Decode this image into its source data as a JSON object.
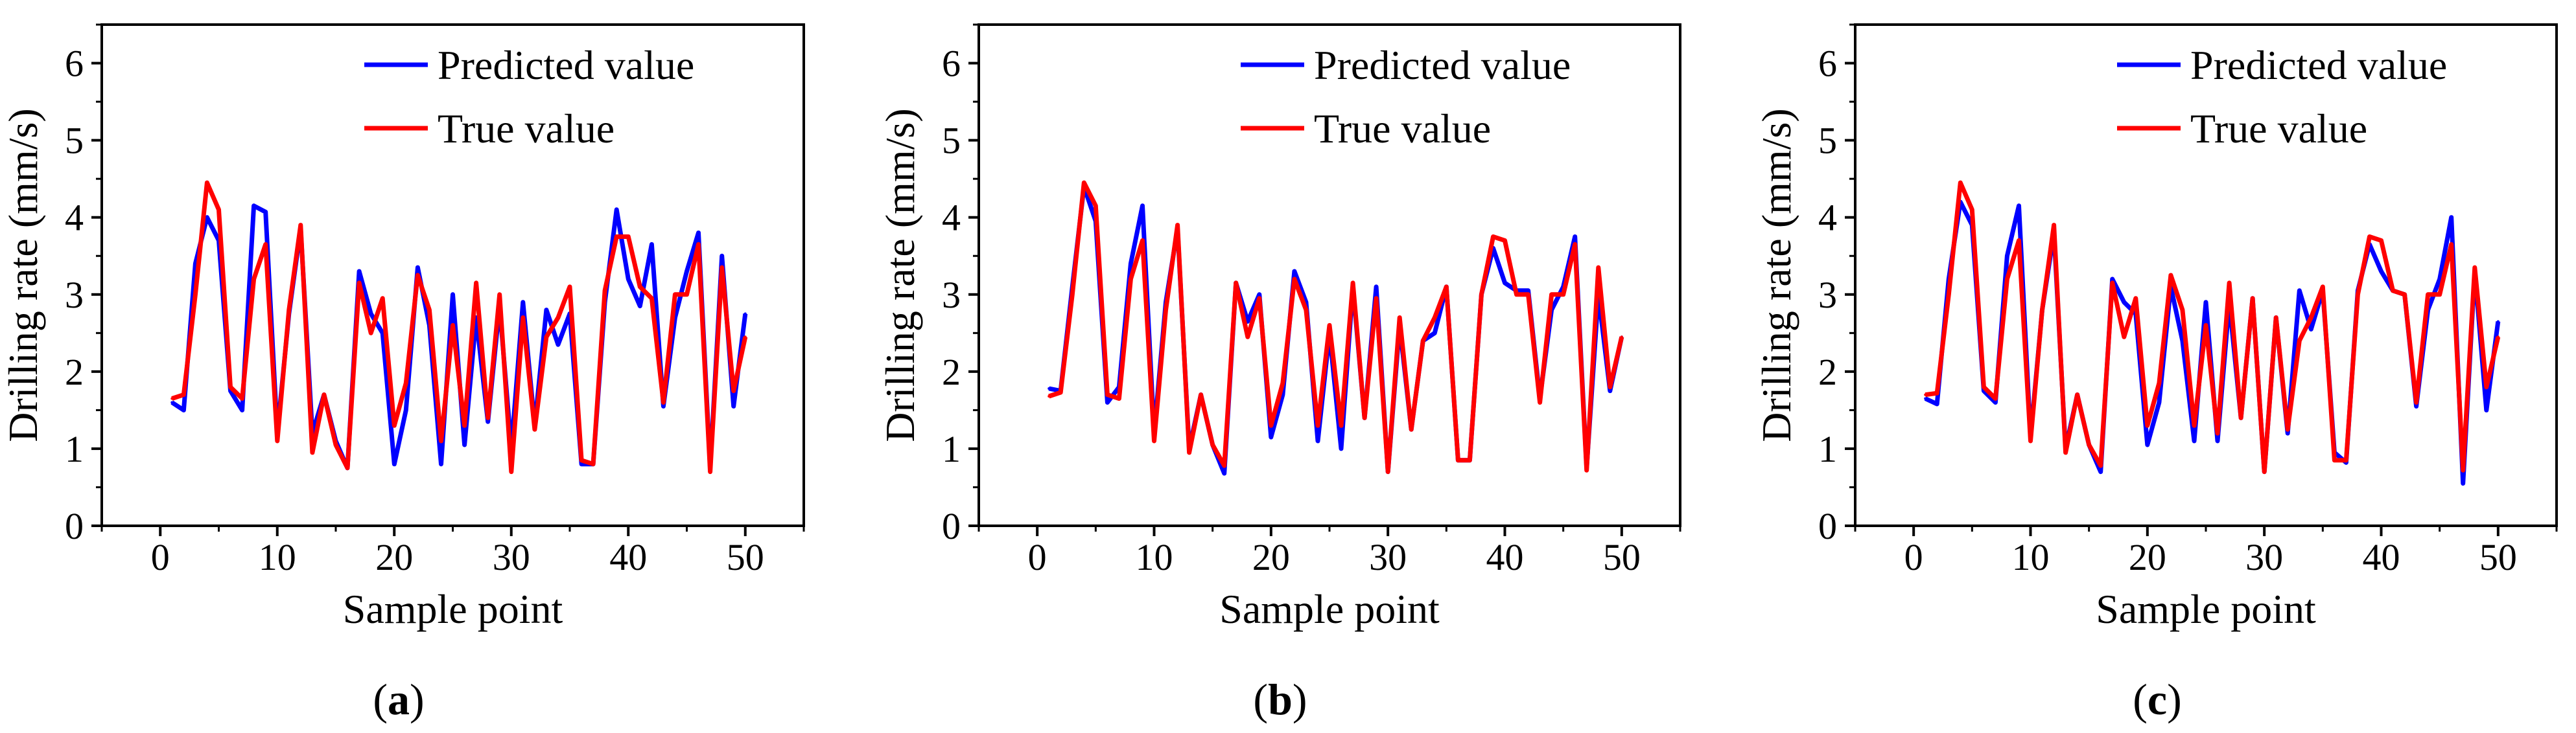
{
  "figure": {
    "panels": [
      "a",
      "b",
      "c"
    ]
  },
  "chart_data": [
    {
      "type": "line",
      "panel_label": "a",
      "xlabel": "Sample point",
      "ylabel": "Drilling rate (mm/s)",
      "xlim": [
        -5,
        55
      ],
      "ylim": [
        0,
        6.5
      ],
      "xticks": [
        0,
        10,
        20,
        30,
        40,
        50
      ],
      "yticks": [
        0,
        1,
        2,
        3,
        4,
        5,
        6
      ],
      "legend_position": "top-right",
      "x": [
        1,
        2,
        3,
        4,
        5,
        6,
        7,
        8,
        9,
        10,
        11,
        12,
        13,
        14,
        15,
        16,
        17,
        18,
        19,
        20,
        21,
        22,
        23,
        24,
        25,
        26,
        27,
        28,
        29,
        30,
        31,
        32,
        33,
        34,
        35,
        36,
        37,
        38,
        39,
        40,
        41,
        42,
        43,
        44,
        45,
        46,
        47,
        48,
        49,
        50
      ],
      "series": [
        {
          "name": "Predicted value",
          "color": "#0000ff",
          "values": [
            1.6,
            1.5,
            3.4,
            4.0,
            3.7,
            1.75,
            1.5,
            4.15,
            4.07,
            1.2,
            2.75,
            3.85,
            1.2,
            1.7,
            1.1,
            0.75,
            3.3,
            2.75,
            2.5,
            0.8,
            1.5,
            3.35,
            2.6,
            0.8,
            3.0,
            1.05,
            2.7,
            1.35,
            2.85,
            1.0,
            2.9,
            1.3,
            2.8,
            2.35,
            2.75,
            0.8,
            0.8,
            2.9,
            4.1,
            3.2,
            2.85,
            3.65,
            1.55,
            2.7,
            3.3,
            3.8,
            0.75,
            3.5,
            1.55,
            2.75
          ]
        },
        {
          "name": "True value",
          "color": "#ff0000",
          "values": [
            1.65,
            1.7,
            3.0,
            4.45,
            4.1,
            1.8,
            1.65,
            3.2,
            3.65,
            1.1,
            2.8,
            3.9,
            0.95,
            1.7,
            1.05,
            0.75,
            3.15,
            2.5,
            2.95,
            1.3,
            1.85,
            3.25,
            2.8,
            1.1,
            2.6,
            1.3,
            3.15,
            1.4,
            3.0,
            0.7,
            2.7,
            1.25,
            2.45,
            2.7,
            3.1,
            0.85,
            0.8,
            3.05,
            3.75,
            3.75,
            3.1,
            2.95,
            1.6,
            3.0,
            3.0,
            3.65,
            0.7,
            3.35,
            1.75,
            2.45
          ]
        }
      ]
    },
    {
      "type": "line",
      "panel_label": "b",
      "xlabel": "Sample point",
      "ylabel": "Drilling rate (mm/s)",
      "xlim": [
        -5,
        55
      ],
      "ylim": [
        0,
        6.5
      ],
      "xticks": [
        0,
        10,
        20,
        30,
        40,
        50
      ],
      "yticks": [
        0,
        1,
        2,
        3,
        4,
        5,
        6
      ],
      "legend_position": "top-right",
      "x": [
        1,
        2,
        3,
        4,
        5,
        6,
        7,
        8,
        9,
        10,
        11,
        12,
        13,
        14,
        15,
        16,
        17,
        18,
        19,
        20,
        21,
        22,
        23,
        24,
        25,
        26,
        27,
        28,
        29,
        30,
        31,
        32,
        33,
        34,
        35,
        36,
        37,
        38,
        39,
        40,
        41,
        42,
        43,
        44,
        45,
        46,
        47,
        48,
        49,
        50
      ],
      "series": [
        {
          "name": "Predicted value",
          "color": "#0000ff",
          "values": [
            1.78,
            1.75,
            3.1,
            4.4,
            3.95,
            1.6,
            1.8,
            3.4,
            4.15,
            1.2,
            2.9,
            3.85,
            1.0,
            1.7,
            1.05,
            0.68,
            3.15,
            2.65,
            3.0,
            1.15,
            1.7,
            3.3,
            2.9,
            1.1,
            2.5,
            1.0,
            3.1,
            1.4,
            3.1,
            0.7,
            2.6,
            1.25,
            2.4,
            2.5,
            3.1,
            0.85,
            0.85,
            3.0,
            3.6,
            3.15,
            3.05,
            3.05,
            1.65,
            2.8,
            3.1,
            3.75,
            0.75,
            3.0,
            1.75,
            2.45
          ]
        },
        {
          "name": "True value",
          "color": "#ff0000",
          "values": [
            1.68,
            1.73,
            3.0,
            4.45,
            4.15,
            1.7,
            1.65,
            3.2,
            3.7,
            1.1,
            2.8,
            3.9,
            0.95,
            1.7,
            1.05,
            0.78,
            3.15,
            2.45,
            2.95,
            1.3,
            1.85,
            3.2,
            2.8,
            1.3,
            2.6,
            1.3,
            3.15,
            1.4,
            2.95,
            0.7,
            2.7,
            1.25,
            2.4,
            2.7,
            3.1,
            0.85,
            0.85,
            3.0,
            3.75,
            3.7,
            3.0,
            3.0,
            1.6,
            3.0,
            3.0,
            3.65,
            0.72,
            3.35,
            1.8,
            2.45
          ]
        }
      ]
    },
    {
      "type": "line",
      "panel_label": "c",
      "xlabel": "Sample point",
      "ylabel": "Drilling rate (mm/s)",
      "xlim": [
        -5,
        55
      ],
      "ylim": [
        0,
        6.5
      ],
      "xticks": [
        0,
        10,
        20,
        30,
        40,
        50
      ],
      "yticks": [
        0,
        1,
        2,
        3,
        4,
        5,
        6
      ],
      "legend_position": "top-right",
      "x": [
        1,
        2,
        3,
        4,
        5,
        6,
        7,
        8,
        9,
        10,
        11,
        12,
        13,
        14,
        15,
        16,
        17,
        18,
        19,
        20,
        21,
        22,
        23,
        24,
        25,
        26,
        27,
        28,
        29,
        30,
        31,
        32,
        33,
        34,
        35,
        36,
        37,
        38,
        39,
        40,
        41,
        42,
        43,
        44,
        45,
        46,
        47,
        48,
        49,
        50
      ],
      "series": [
        {
          "name": "Predicted value",
          "color": "#0000ff",
          "values": [
            1.65,
            1.58,
            3.2,
            4.2,
            3.9,
            1.75,
            1.6,
            3.5,
            4.15,
            1.15,
            2.8,
            3.8,
            1.0,
            1.7,
            1.05,
            0.7,
            3.2,
            2.9,
            2.75,
            1.05,
            1.6,
            3.1,
            2.4,
            1.1,
            2.9,
            1.1,
            2.9,
            1.4,
            2.95,
            0.7,
            2.7,
            1.2,
            3.05,
            2.55,
            3.05,
            0.95,
            0.82,
            3.05,
            3.65,
            3.3,
            3.05,
            3.0,
            1.55,
            2.8,
            3.2,
            4.0,
            0.55,
            3.3,
            1.5,
            2.65
          ]
        },
        {
          "name": "True value",
          "color": "#ff0000",
          "values": [
            1.7,
            1.72,
            3.0,
            4.45,
            4.1,
            1.8,
            1.65,
            3.2,
            3.7,
            1.1,
            2.8,
            3.9,
            0.95,
            1.7,
            1.05,
            0.78,
            3.15,
            2.45,
            2.95,
            1.3,
            1.85,
            3.25,
            2.8,
            1.3,
            2.6,
            1.2,
            3.15,
            1.4,
            2.95,
            0.7,
            2.7,
            1.25,
            2.4,
            2.7,
            3.1,
            0.85,
            0.85,
            3.0,
            3.75,
            3.7,
            3.05,
            3.0,
            1.6,
            3.0,
            3.0,
            3.65,
            0.72,
            3.35,
            1.8,
            2.45
          ]
        }
      ]
    }
  ]
}
